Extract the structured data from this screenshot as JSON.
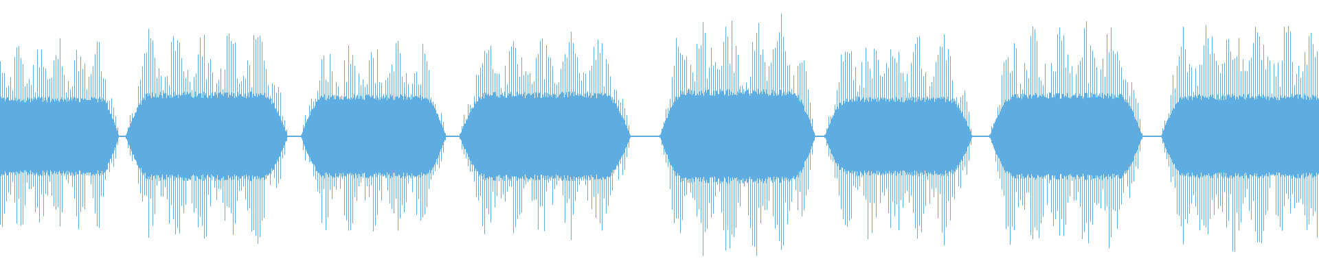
{
  "waveform": {
    "color": "#5DADE2",
    "background": "#FFFFFF",
    "segments": [
      {
        "start_fraction": 0.0,
        "end_fraction": 0.09,
        "peak": 0.8,
        "body": 0.32
      },
      {
        "start_fraction": 0.095,
        "end_fraction": 0.218,
        "peak": 0.88,
        "body": 0.36
      },
      {
        "start_fraction": 0.228,
        "end_fraction": 0.338,
        "peak": 0.78,
        "body": 0.34
      },
      {
        "start_fraction": 0.348,
        "end_fraction": 0.478,
        "peak": 0.84,
        "body": 0.36
      },
      {
        "start_fraction": 0.5,
        "end_fraction": 0.618,
        "peak": 0.99,
        "body": 0.38
      },
      {
        "start_fraction": 0.625,
        "end_fraction": 0.737,
        "peak": 0.88,
        "body": 0.32
      },
      {
        "start_fraction": 0.75,
        "end_fraction": 0.866,
        "peak": 0.93,
        "body": 0.35
      },
      {
        "start_fraction": 0.88,
        "end_fraction": 1.0,
        "peak": 0.96,
        "body": 0.34
      }
    ]
  }
}
